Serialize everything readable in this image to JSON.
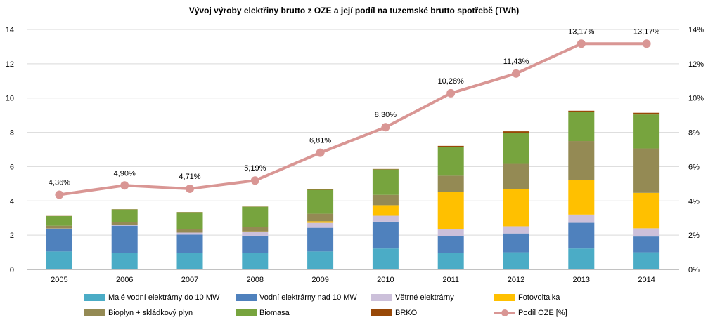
{
  "chart_data": {
    "type": "bar",
    "title": "Vývoj výroby elektřiny brutto z OZE a její podíl na tuzemské brutto spotřebě (TWh)",
    "categories": [
      "2005",
      "2006",
      "2007",
      "2008",
      "2009",
      "2010",
      "2011",
      "2012",
      "2013",
      "2014"
    ],
    "stacked": true,
    "ylim": [
      0,
      14
    ],
    "yticks": [
      "0",
      "2",
      "4",
      "6",
      "8",
      "10",
      "12",
      "14"
    ],
    "y2lim": [
      0,
      14
    ],
    "y2ticks": [
      "0%",
      "2%",
      "4%",
      "6%",
      "8%",
      "10%",
      "12%",
      "14%"
    ],
    "grid": true,
    "legend_position": "bottom",
    "series": [
      {
        "name": "Malé vodní elektrárny do 10 MW",
        "color": "#4bacc6",
        "values": [
          1.05,
          0.95,
          0.98,
          0.95,
          1.05,
          1.22,
          0.98,
          1.0,
          1.22,
          1.0
        ]
      },
      {
        "name": "Vodní elektrárny nad 10 MW",
        "color": "#4f81bd",
        "values": [
          1.32,
          1.6,
          1.05,
          1.02,
          1.38,
          1.57,
          0.98,
          1.1,
          1.5,
          0.92
        ]
      },
      {
        "name": "Větrné elektrárny",
        "color": "#ccc0da",
        "values": [
          0.02,
          0.05,
          0.12,
          0.24,
          0.29,
          0.34,
          0.4,
          0.42,
          0.48,
          0.48
        ]
      },
      {
        "name": "Fotovoltaika",
        "color": "#ffc000",
        "values": [
          0.0,
          0.0,
          0.0,
          0.01,
          0.09,
          0.62,
          2.18,
          2.17,
          2.03,
          2.07
        ]
      },
      {
        "name": "Bioplyn + skládkový plyn",
        "color": "#948a54",
        "values": [
          0.16,
          0.17,
          0.22,
          0.27,
          0.44,
          0.6,
          0.93,
          1.47,
          2.26,
          2.59
        ]
      },
      {
        "name": "Biomasa",
        "color": "#77a43e",
        "values": [
          0.56,
          0.73,
          0.97,
          1.17,
          1.4,
          1.49,
          1.69,
          1.82,
          1.68,
          1.98
        ]
      },
      {
        "name": "BRKO",
        "color": "#984807",
        "values": [
          0.01,
          0.01,
          0.01,
          0.01,
          0.02,
          0.02,
          0.05,
          0.08,
          0.09,
          0.1
        ]
      }
    ],
    "line": {
      "name": "Podíl OZE [%]",
      "color": "#d99694",
      "values": [
        4.36,
        4.9,
        4.71,
        5.19,
        6.81,
        8.3,
        10.28,
        11.43,
        13.17,
        13.17
      ],
      "labels": [
        "4,36%",
        "4,90%",
        "4,71%",
        "5,19%",
        "6,81%",
        "8,30%",
        "10,28%",
        "11,43%",
        "13,17%",
        "13,17%"
      ]
    }
  }
}
